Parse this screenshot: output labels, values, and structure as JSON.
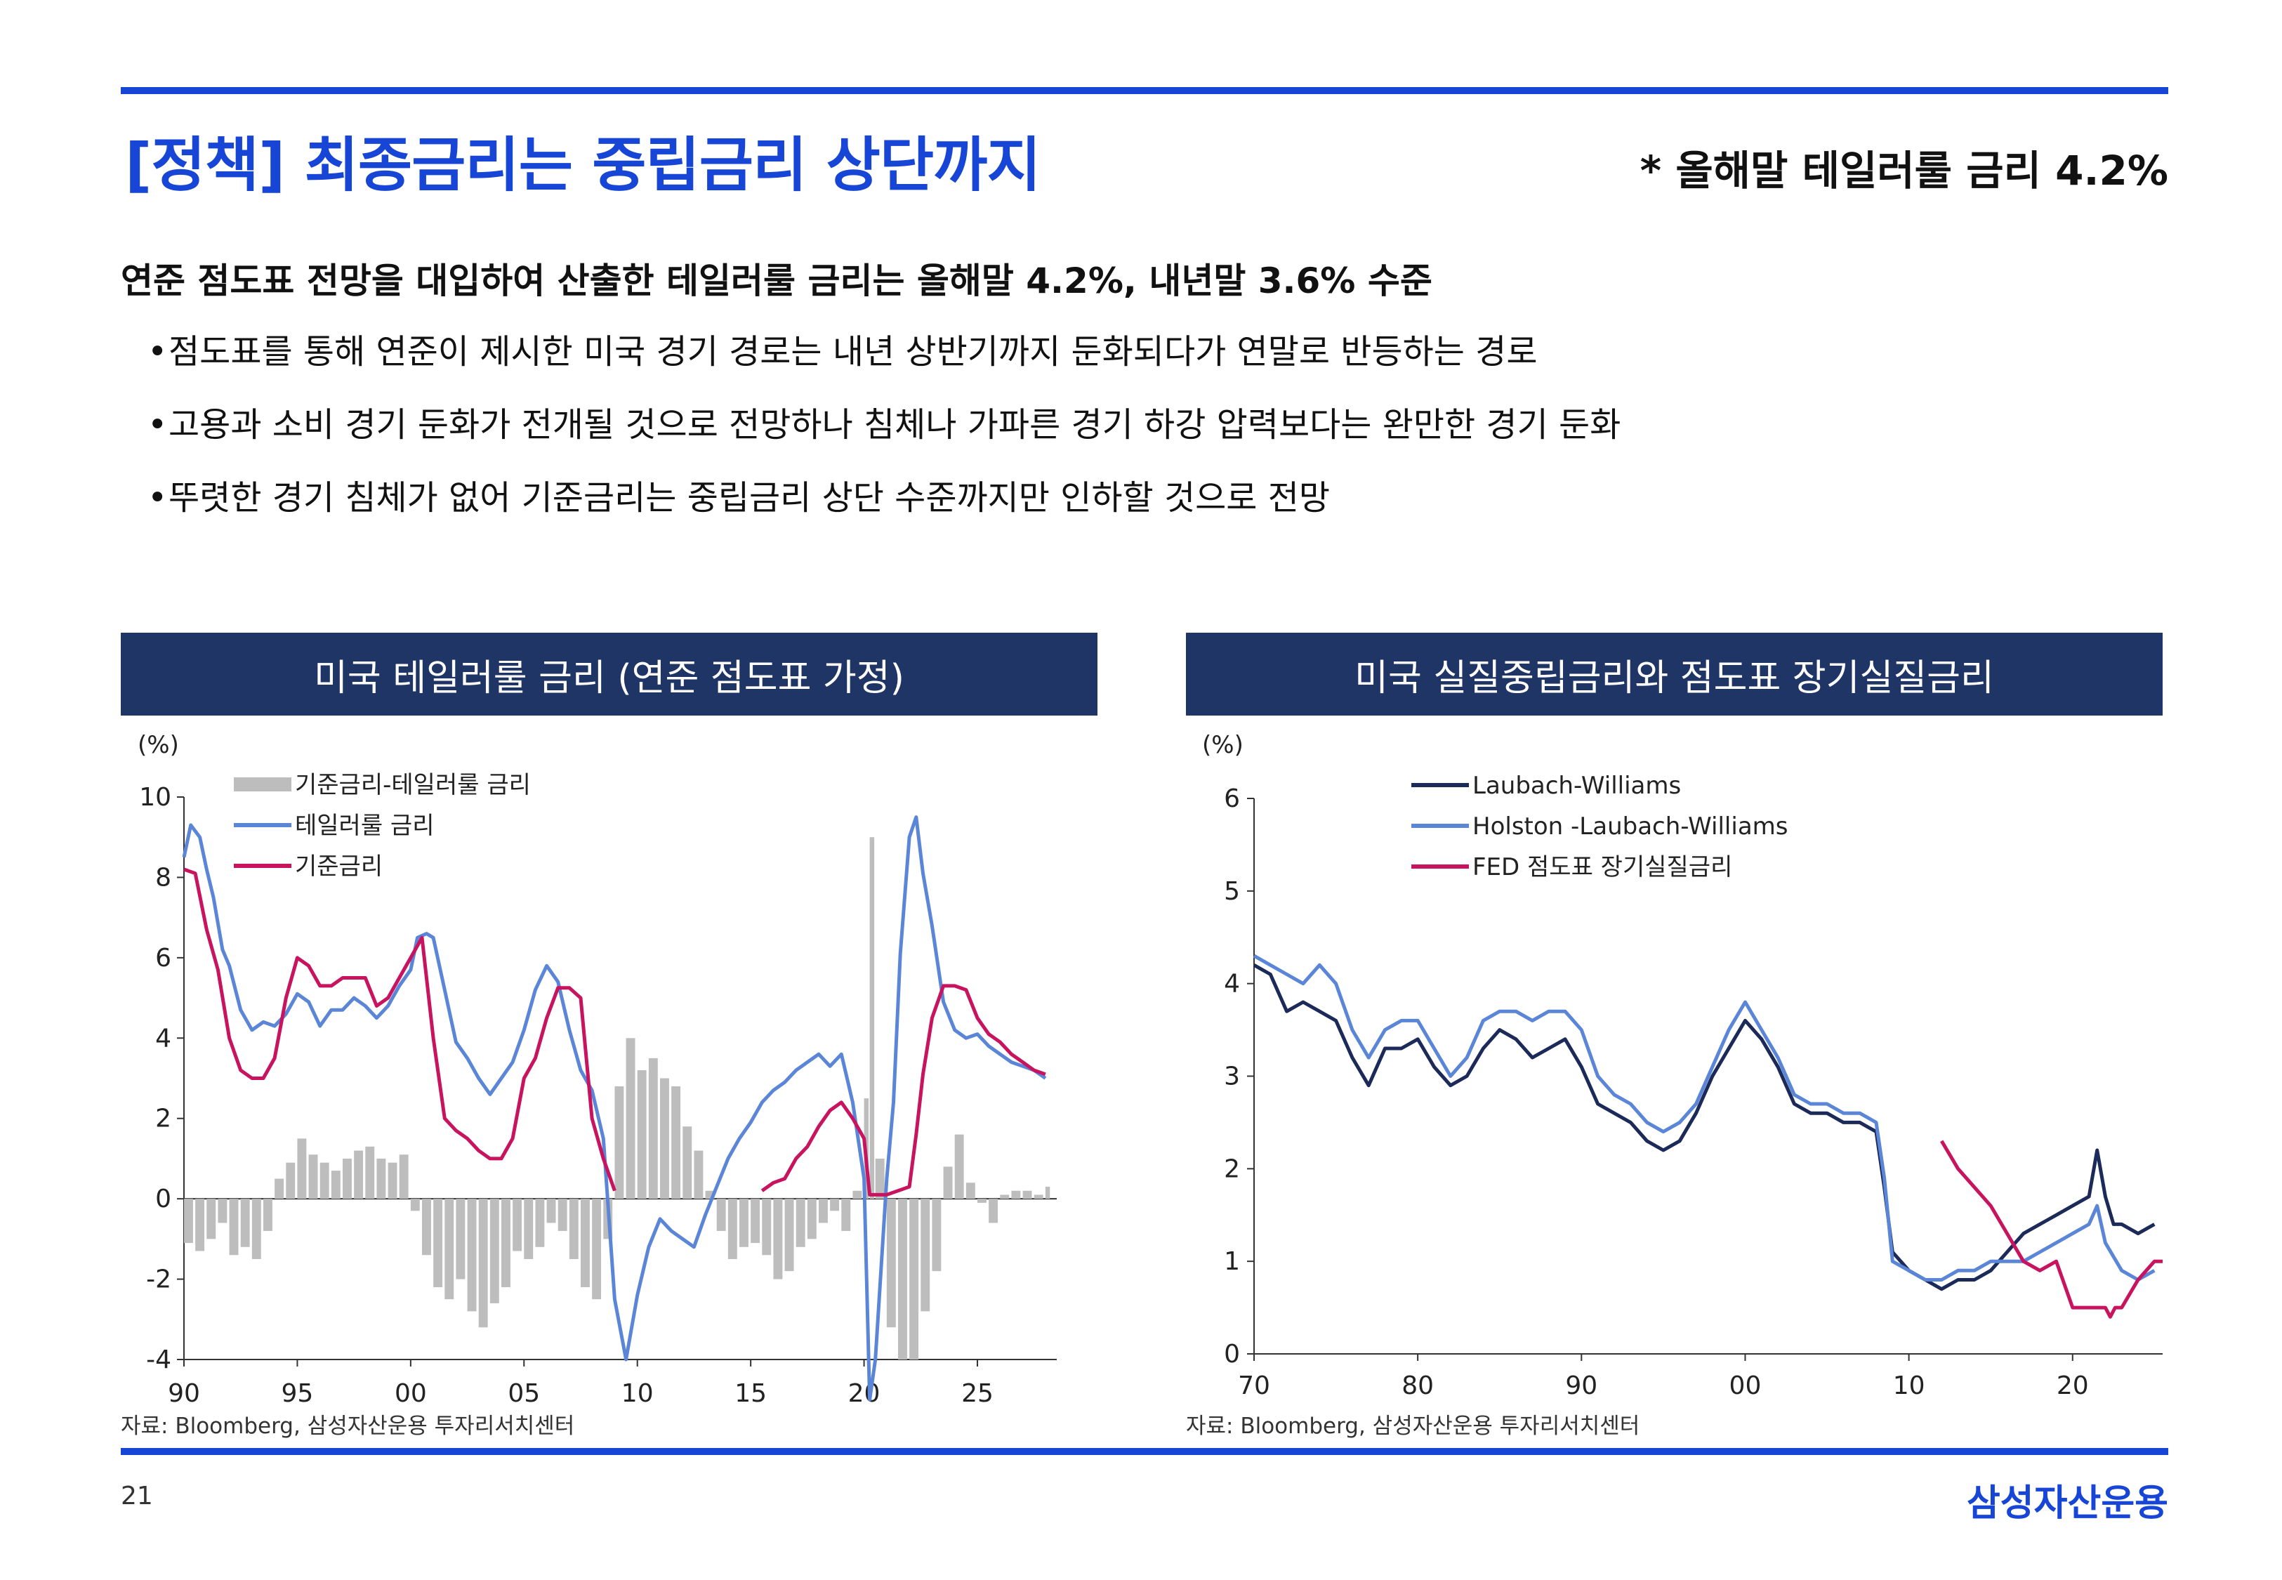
{
  "header": {
    "title": "[정책] 최종금리는 중립금리 상단까지",
    "note": "* 올해말 테일러룰 금리 4.2%"
  },
  "summary": {
    "headline": "연준 점도표 전망을 대입하여 산출한 테일러룰 금리는 올해말 4.2%, 내년말 3.6% 수준",
    "bullet_symbol": "•",
    "bullets": [
      "점도표를 통해 연준이 제시한 미국 경기 경로는 내년 상반기까지 둔화되다가 연말로 반등하는 경로",
      "고용과 소비 경기 둔화가 전개될 것으로 전망하나 침체나 가파른 경기 하강 압력보다는 완만한 경기 둔화",
      "뚜렷한 경기 침체가 없어 기준금리는 중립금리 상단 수준까지만 인하할 것으로 전망"
    ]
  },
  "colors": {
    "accent": "#1746d6",
    "panel_header": "#1f3566",
    "series_gray": "#bdbdbd",
    "series_blue": "#5b86d8",
    "series_red": "#c8135f",
    "series_navy": "#1b2a59"
  },
  "chart_data": [
    {
      "type": "line",
      "title": "미국 테일러룰 금리 (연준 점도표 가정)",
      "ylabel": "(%)",
      "ylim": [
        -4,
        10
      ],
      "yticks": [
        10,
        8,
        6,
        4,
        2,
        0,
        -2,
        -4
      ],
      "xlim": [
        1990,
        2028.5
      ],
      "xticks": [
        1990,
        1995,
        2000,
        2005,
        2010,
        2015,
        2020,
        2025
      ],
      "xtick_labels": [
        "90",
        "95",
        "00",
        "05",
        "10",
        "15",
        "20",
        "25"
      ],
      "source": "자료: Bloomberg, 삼성자산운용 투자리서치센터",
      "series": [
        {
          "name": "기준금리-테일러룰 금리",
          "kind": "bar",
          "color": "#bdbdbd",
          "x": [
            1990.0,
            1990.5,
            1991.0,
            1991.5,
            1992.0,
            1992.5,
            1993.0,
            1993.5,
            1994.0,
            1994.5,
            1995.0,
            1995.5,
            1996.0,
            1996.5,
            1997.0,
            1997.5,
            1998.0,
            1998.5,
            1999.0,
            1999.5,
            2000.0,
            2000.5,
            2001.0,
            2001.5,
            2002.0,
            2002.5,
            2003.0,
            2003.5,
            2004.0,
            2004.5,
            2005.0,
            2005.5,
            2006.0,
            2006.5,
            2007.0,
            2007.5,
            2008.0,
            2008.5,
            2009.0,
            2009.5,
            2010.0,
            2010.5,
            2011.0,
            2011.5,
            2012.0,
            2012.5,
            2013.0,
            2013.5,
            2014.0,
            2014.5,
            2015.0,
            2015.5,
            2016.0,
            2016.5,
            2017.0,
            2017.5,
            2018.0,
            2018.5,
            2019.0,
            2019.5,
            2020.0,
            2020.25,
            2020.5,
            2021.0,
            2021.5,
            2022.0,
            2022.5,
            2023.0,
            2023.5,
            2024.0,
            2024.5,
            2025.0,
            2025.5,
            2026.0,
            2026.5,
            2027.0,
            2027.5,
            2028.0
          ],
          "values": [
            -1.1,
            -1.3,
            -1.0,
            -0.6,
            -1.4,
            -1.2,
            -1.5,
            -0.8,
            0.5,
            0.9,
            1.5,
            1.1,
            0.9,
            0.7,
            1.0,
            1.2,
            1.3,
            1.0,
            0.9,
            1.1,
            -0.3,
            -1.4,
            -2.2,
            -2.5,
            -2.0,
            -2.8,
            -3.2,
            -2.6,
            -2.2,
            -1.3,
            -1.5,
            -1.2,
            -0.6,
            -0.8,
            -1.5,
            -2.2,
            -2.5,
            -1.0,
            2.8,
            4.0,
            3.2,
            3.5,
            3.0,
            2.8,
            1.8,
            1.2,
            0.2,
            -0.8,
            -1.5,
            -1.2,
            -1.1,
            -1.4,
            -2.0,
            -1.8,
            -1.2,
            -1.0,
            -0.6,
            -0.3,
            -0.8,
            0.2,
            2.5,
            9.0,
            1.0,
            -3.2,
            -4.0,
            -4.0,
            -2.8,
            -1.8,
            0.8,
            1.6,
            0.4,
            -0.1,
            -0.6,
            0.1,
            0.2,
            0.2,
            0.1,
            0.3
          ]
        },
        {
          "name": "테일러룰 금리",
          "color": "#5b86d8",
          "x": [
            1990.0,
            1990.3,
            1990.7,
            1991.0,
            1991.3,
            1991.7,
            1992.0,
            1992.5,
            1993.0,
            1993.5,
            1994.0,
            1994.5,
            1995.0,
            1995.5,
            1996.0,
            1996.5,
            1997.0,
            1997.5,
            1998.0,
            1998.5,
            1999.0,
            1999.5,
            2000.0,
            2000.3,
            2000.7,
            2001.0,
            2001.5,
            2002.0,
            2002.5,
            2003.0,
            2003.5,
            2004.0,
            2004.5,
            2005.0,
            2005.5,
            2006.0,
            2006.5,
            2007.0,
            2007.5,
            2008.0,
            2008.5,
            2009.0,
            2009.5,
            2010.0,
            2010.5,
            2011.0,
            2011.5,
            2012.0,
            2012.5,
            2013.0,
            2013.5,
            2014.0,
            2014.5,
            2015.0,
            2015.5,
            2016.0,
            2016.5,
            2017.0,
            2017.5,
            2018.0,
            2018.5,
            2019.0,
            2019.5,
            2020.0,
            2020.25,
            2020.5,
            2021.0,
            2021.3,
            2021.6,
            2022.0,
            2022.3,
            2022.6,
            2023.0,
            2023.5,
            2024.0,
            2024.5,
            2025.0,
            2025.5,
            2026.0,
            2026.5,
            2027.0,
            2027.5,
            2028.0
          ],
          "values": [
            8.5,
            9.3,
            9.0,
            8.2,
            7.5,
            6.2,
            5.8,
            4.7,
            4.2,
            4.4,
            4.3,
            4.6,
            5.1,
            4.9,
            4.3,
            4.7,
            4.7,
            5.0,
            4.8,
            4.5,
            4.8,
            5.3,
            5.7,
            6.5,
            6.6,
            6.5,
            5.2,
            3.9,
            3.5,
            3.0,
            2.6,
            3.0,
            3.4,
            4.2,
            5.2,
            5.8,
            5.4,
            4.2,
            3.2,
            2.7,
            1.5,
            -2.5,
            -4.0,
            -2.4,
            -1.2,
            -0.5,
            -0.8,
            -1.0,
            -1.2,
            -0.4,
            0.3,
            1.0,
            1.5,
            1.9,
            2.4,
            2.7,
            2.9,
            3.2,
            3.4,
            3.6,
            3.3,
            3.6,
            2.4,
            0.5,
            -5.0,
            -4.0,
            0.5,
            2.4,
            6.1,
            9.0,
            9.5,
            8.1,
            6.8,
            4.9,
            4.2,
            4.0,
            4.1,
            3.8,
            3.6,
            3.4,
            3.3,
            3.2,
            3.0
          ]
        },
        {
          "name": "기준금리",
          "color": "#c8135f",
          "x": [
            1990.0,
            1990.5,
            1991.0,
            1991.5,
            1992.0,
            1992.5,
            1993.0,
            1993.5,
            1994.0,
            1994.5,
            1995.0,
            1995.5,
            1996.0,
            1996.5,
            1997.0,
            1997.5,
            1998.0,
            1998.5,
            1999.0,
            1999.5,
            2000.0,
            2000.5,
            2001.0,
            2001.5,
            2002.0,
            2002.5,
            2003.0,
            2003.5,
            2004.0,
            2004.5,
            2005.0,
            2005.5,
            2006.0,
            2006.5,
            2007.0,
            2007.5,
            2008.0,
            2008.5,
            2009.0,
            2015.5,
            2016.0,
            2016.5,
            2017.0,
            2017.5,
            2018.0,
            2018.5,
            2019.0,
            2019.5,
            2020.0,
            2020.25,
            2021.0,
            2022.0,
            2022.3,
            2022.6,
            2023.0,
            2023.5,
            2024.0,
            2024.5,
            2025.0,
            2025.5,
            2026.0,
            2026.5,
            2027.0,
            2027.5,
            2028.0
          ],
          "values": [
            8.2,
            8.1,
            6.7,
            5.7,
            4.0,
            3.2,
            3.0,
            3.0,
            3.5,
            5.0,
            6.0,
            5.8,
            5.3,
            5.3,
            5.5,
            5.5,
            5.5,
            4.8,
            5.0,
            5.5,
            6.0,
            6.5,
            4.0,
            2.0,
            1.7,
            1.5,
            1.2,
            1.0,
            1.0,
            1.5,
            3.0,
            3.5,
            4.5,
            5.25,
            5.25,
            5.0,
            2.0,
            1.0,
            0.2,
            0.2,
            0.4,
            0.5,
            1.0,
            1.3,
            1.8,
            2.2,
            2.4,
            2.0,
            1.5,
            0.1,
            0.1,
            0.3,
            1.6,
            3.1,
            4.5,
            5.3,
            5.3,
            5.2,
            4.5,
            4.1,
            3.9,
            3.6,
            3.4,
            3.2,
            3.1
          ]
        }
      ]
    },
    {
      "type": "line",
      "title": "미국 실질중립금리와 점도표 장기실질금리",
      "ylabel": "(%)",
      "ylim": [
        0,
        6
      ],
      "yticks": [
        6,
        5,
        4,
        3,
        2,
        1,
        0
      ],
      "xlim": [
        1970,
        2025.5
      ],
      "xticks": [
        1970,
        1980,
        1990,
        2000,
        2010,
        2020
      ],
      "xtick_labels": [
        "70",
        "80",
        "90",
        "00",
        "10",
        "20"
      ],
      "source": "자료: Bloomberg, 삼성자산운용 투자리서치센터",
      "series": [
        {
          "name": "Laubach-Williams",
          "color": "#1b2a59",
          "x": [
            1970.0,
            1971.0,
            1972.0,
            1973.0,
            1974.0,
            1975.0,
            1976.0,
            1977.0,
            1978.0,
            1979.0,
            1980.0,
            1981.0,
            1982.0,
            1983.0,
            1984.0,
            1985.0,
            1986.0,
            1987.0,
            1988.0,
            1989.0,
            1990.0,
            1991.0,
            1992.0,
            1993.0,
            1994.0,
            1995.0,
            1996.0,
            1997.0,
            1998.0,
            1999.0,
            2000.0,
            2001.0,
            2002.0,
            2003.0,
            2004.0,
            2005.0,
            2006.0,
            2007.0,
            2008.0,
            2008.5,
            2009.0,
            2010.0,
            2011.0,
            2012.0,
            2013.0,
            2014.0,
            2015.0,
            2016.0,
            2017.0,
            2018.0,
            2019.0,
            2020.0,
            2021.0,
            2021.5,
            2022.0,
            2022.5,
            2023.0,
            2024.0,
            2025.0
          ],
          "values": [
            4.2,
            4.1,
            3.7,
            3.8,
            3.7,
            3.6,
            3.2,
            2.9,
            3.3,
            3.3,
            3.4,
            3.1,
            2.9,
            3.0,
            3.3,
            3.5,
            3.4,
            3.2,
            3.3,
            3.4,
            3.1,
            2.7,
            2.6,
            2.5,
            2.3,
            2.2,
            2.3,
            2.6,
            3.0,
            3.3,
            3.6,
            3.4,
            3.1,
            2.7,
            2.6,
            2.6,
            2.5,
            2.5,
            2.4,
            1.8,
            1.1,
            0.9,
            0.8,
            0.7,
            0.8,
            0.8,
            0.9,
            1.1,
            1.3,
            1.4,
            1.5,
            1.6,
            1.7,
            2.2,
            1.7,
            1.4,
            1.4,
            1.3,
            1.4
          ]
        },
        {
          "name": "Holston -Laubach-Williams",
          "color": "#5b86d8",
          "x": [
            1970.0,
            1971.0,
            1972.0,
            1973.0,
            1974.0,
            1975.0,
            1976.0,
            1977.0,
            1978.0,
            1979.0,
            1980.0,
            1981.0,
            1982.0,
            1983.0,
            1984.0,
            1985.0,
            1986.0,
            1987.0,
            1988.0,
            1989.0,
            1990.0,
            1991.0,
            1992.0,
            1993.0,
            1994.0,
            1995.0,
            1996.0,
            1997.0,
            1998.0,
            1999.0,
            2000.0,
            2001.0,
            2002.0,
            2003.0,
            2004.0,
            2005.0,
            2006.0,
            2007.0,
            2008.0,
            2008.5,
            2009.0,
            2010.0,
            2011.0,
            2012.0,
            2013.0,
            2014.0,
            2015.0,
            2016.0,
            2017.0,
            2018.0,
            2019.0,
            2020.0,
            2021.0,
            2021.5,
            2022.0,
            2023.0,
            2024.0,
            2025.0
          ],
          "values": [
            4.3,
            4.2,
            4.1,
            4.0,
            4.2,
            4.0,
            3.5,
            3.2,
            3.5,
            3.6,
            3.6,
            3.3,
            3.0,
            3.2,
            3.6,
            3.7,
            3.7,
            3.6,
            3.7,
            3.7,
            3.5,
            3.0,
            2.8,
            2.7,
            2.5,
            2.4,
            2.5,
            2.7,
            3.1,
            3.5,
            3.8,
            3.5,
            3.2,
            2.8,
            2.7,
            2.7,
            2.6,
            2.6,
            2.5,
            1.9,
            1.0,
            0.9,
            0.8,
            0.8,
            0.9,
            0.9,
            1.0,
            1.0,
            1.0,
            1.1,
            1.2,
            1.3,
            1.4,
            1.6,
            1.2,
            0.9,
            0.8,
            0.9
          ]
        },
        {
          "name": "FED 점도표 장기실질금리",
          "color": "#c8135f",
          "x": [
            2012.0,
            2013.0,
            2014.0,
            2015.0,
            2016.0,
            2017.0,
            2018.0,
            2019.0,
            2020.0,
            2021.0,
            2022.0,
            2022.3,
            2022.6,
            2023.0,
            2024.0,
            2025.0,
            2025.5
          ],
          "values": [
            2.3,
            2.0,
            1.8,
            1.6,
            1.3,
            1.0,
            0.9,
            1.0,
            0.5,
            0.5,
            0.5,
            0.4,
            0.5,
            0.5,
            0.8,
            1.0,
            1.0
          ]
        }
      ]
    }
  ],
  "footer": {
    "page_number": "21",
    "brand": "삼성자산운용"
  }
}
